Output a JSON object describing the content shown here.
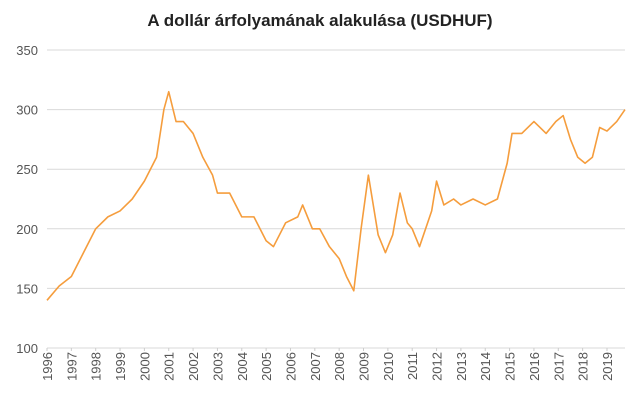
{
  "chart_data": {
    "type": "line",
    "title": "A dollár árfolyamának alakulása (USDHUF)",
    "x": [
      1996.0,
      1996.5,
      1997.0,
      1997.5,
      1998.0,
      1998.5,
      1999.0,
      1999.5,
      2000.0,
      2000.5,
      2000.8,
      2001.0,
      2001.3,
      2001.6,
      2002.0,
      2002.4,
      2002.8,
      2003.0,
      2003.5,
      2004.0,
      2004.5,
      2005.0,
      2005.3,
      2005.8,
      2006.3,
      2006.5,
      2006.9,
      2007.2,
      2007.6,
      2008.0,
      2008.3,
      2008.6,
      2008.9,
      2009.2,
      2009.6,
      2009.9,
      2010.2,
      2010.5,
      2010.8,
      2011.0,
      2011.3,
      2011.8,
      2012.0,
      2012.3,
      2012.7,
      2013.0,
      2013.5,
      2014.0,
      2014.5,
      2014.9,
      2015.1,
      2015.5,
      2016.0,
      2016.5,
      2016.9,
      2017.2,
      2017.5,
      2017.8,
      2018.1,
      2018.4,
      2018.7,
      2019.0,
      2019.4,
      2019.74
    ],
    "series": [
      {
        "name": "USDHUF",
        "color": "#f59d3d",
        "values": [
          140,
          152,
          160,
          180,
          200,
          210,
          215,
          225,
          240,
          260,
          300,
          315,
          290,
          290,
          280,
          260,
          245,
          230,
          230,
          210,
          210,
          190,
          185,
          205,
          210,
          220,
          200,
          200,
          185,
          175,
          160,
          148,
          200,
          245,
          195,
          180,
          195,
          230,
          205,
          200,
          185,
          215,
          240,
          220,
          225,
          220,
          225,
          220,
          225,
          255,
          280,
          280,
          290,
          280,
          290,
          295,
          275,
          260,
          255,
          260,
          285,
          282,
          290,
          300
        ]
      }
    ],
    "xlim": [
      1996,
      2019.74
    ],
    "xticks": [
      1996,
      1997,
      1998,
      1999,
      2000,
      2001,
      2002,
      2003,
      2004,
      2005,
      2006,
      2007,
      2008,
      2009,
      2010,
      2011,
      2012,
      2013,
      2014,
      2015,
      2016,
      2017,
      2018,
      2019
    ],
    "ylim": [
      100,
      350
    ],
    "yticks": [
      100,
      150,
      200,
      250,
      300,
      350
    ],
    "grid": true
  }
}
